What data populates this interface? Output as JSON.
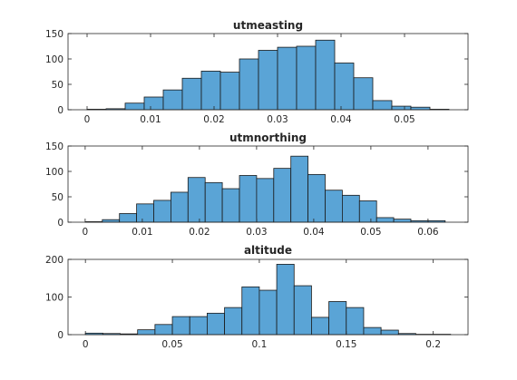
{
  "chart_data": [
    {
      "type": "bar",
      "subtype": "histogram",
      "title": "utmeasting",
      "xlabel": "",
      "ylabel": "",
      "bin_start": 0,
      "bin_width": 0.003,
      "values": [
        1,
        2,
        13,
        25,
        39,
        62,
        76,
        74,
        100,
        117,
        123,
        125,
        137,
        92,
        63,
        18,
        7,
        5,
        1
      ],
      "xlim": [
        -0.003,
        0.06
      ],
      "ylim": [
        0,
        150
      ],
      "xticks": [
        0,
        0.01,
        0.02,
        0.03,
        0.04,
        0.05
      ],
      "xtick_labels": [
        "0",
        "0.01",
        "0.02",
        "0.03",
        "0.04",
        "0.05"
      ],
      "yticks": [
        0,
        50,
        100,
        150
      ],
      "ytick_labels": [
        "0",
        "50",
        "100",
        "150"
      ],
      "bar_color": "#5aa4d6",
      "grid": false
    },
    {
      "type": "bar",
      "subtype": "histogram",
      "title": "utmnorthing",
      "xlabel": "",
      "ylabel": "",
      "bin_start": 0,
      "bin_width": 0.003,
      "values": [
        1,
        5,
        17,
        36,
        43,
        59,
        88,
        78,
        66,
        92,
        86,
        106,
        130,
        94,
        63,
        53,
        42,
        9,
        6,
        3,
        3
      ],
      "xlim": [
        -0.003,
        0.067
      ],
      "ylim": [
        0,
        150
      ],
      "xticks": [
        0,
        0.01,
        0.02,
        0.03,
        0.04,
        0.05,
        0.06
      ],
      "xtick_labels": [
        "0",
        "0.01",
        "0.02",
        "0.03",
        "0.04",
        "0.05",
        "0.06"
      ],
      "yticks": [
        0,
        50,
        100,
        150
      ],
      "ytick_labels": [
        "0",
        "50",
        "100",
        "150"
      ],
      "bar_color": "#5aa4d6",
      "grid": false
    },
    {
      "type": "bar",
      "subtype": "histogram",
      "title": "altitude",
      "xlabel": "",
      "ylabel": "",
      "bin_start": 0,
      "bin_width": 0.01,
      "values": [
        4,
        3,
        2,
        13,
        27,
        48,
        48,
        57,
        72,
        127,
        118,
        187,
        130,
        46,
        88,
        72,
        19,
        12,
        3,
        1,
        1
      ],
      "xlim": [
        -0.01,
        0.22
      ],
      "ylim": [
        0,
        200
      ],
      "xticks": [
        0,
        0.05,
        0.1,
        0.15,
        0.2
      ],
      "xtick_labels": [
        "0",
        "0.05",
        "0.1",
        "0.15",
        "0.2"
      ],
      "yticks": [
        0,
        100,
        200
      ],
      "ytick_labels": [
        "0",
        "100",
        "200"
      ],
      "bar_color": "#5aa4d6",
      "grid": false
    }
  ]
}
